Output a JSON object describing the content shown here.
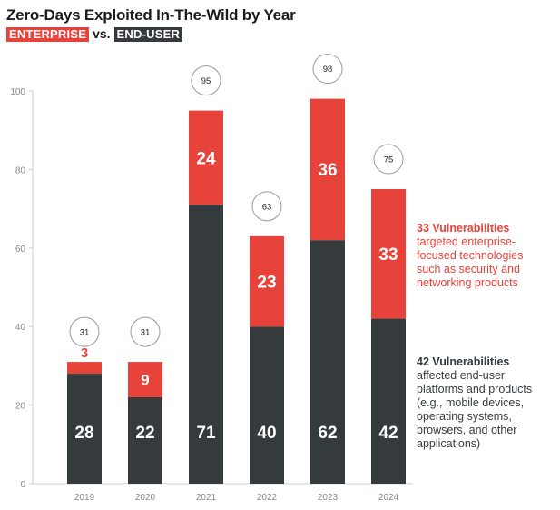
{
  "title": "Zero-Days Exploited In-The-Wild by Year",
  "subtitle": {
    "enterprise_tag": "ENTERPRISE",
    "vs": "vs.",
    "enduser_tag": "END-USER"
  },
  "colors": {
    "enterprise": "#e8433a",
    "enduser": "#353a3d",
    "axis": "#cccccc",
    "tick_text": "#888888"
  },
  "chart_data": {
    "type": "bar",
    "stacked": true,
    "title": "Zero-Days Exploited In-The-Wild by Year",
    "categories": [
      "2019",
      "2020",
      "2021",
      "2022",
      "2023",
      "2024"
    ],
    "series": [
      {
        "name": "END-USER",
        "values": [
          28,
          22,
          71,
          40,
          62,
          42
        ]
      },
      {
        "name": "ENTERPRISE",
        "values": [
          3,
          9,
          24,
          23,
          36,
          33
        ]
      }
    ],
    "totals": [
      31,
      31,
      95,
      63,
      98,
      75
    ],
    "ylim": [
      0,
      100
    ],
    "yticks": [
      0,
      20,
      40,
      60,
      80,
      100
    ],
    "xlabel": "",
    "ylabel": ""
  },
  "annotations": {
    "enterprise": {
      "headline": "33 Vulnerabilities",
      "lines": [
        "targeted enterprise-",
        "focused technologies",
        "such as security and",
        "networking products"
      ]
    },
    "enduser": {
      "headline": "42 Vulnerabilities",
      "lines": [
        "affected end-user",
        "platforms and products",
        "(e.g., mobile devices,",
        "operating systems,",
        "browsers, and other",
        "applications)"
      ]
    }
  }
}
